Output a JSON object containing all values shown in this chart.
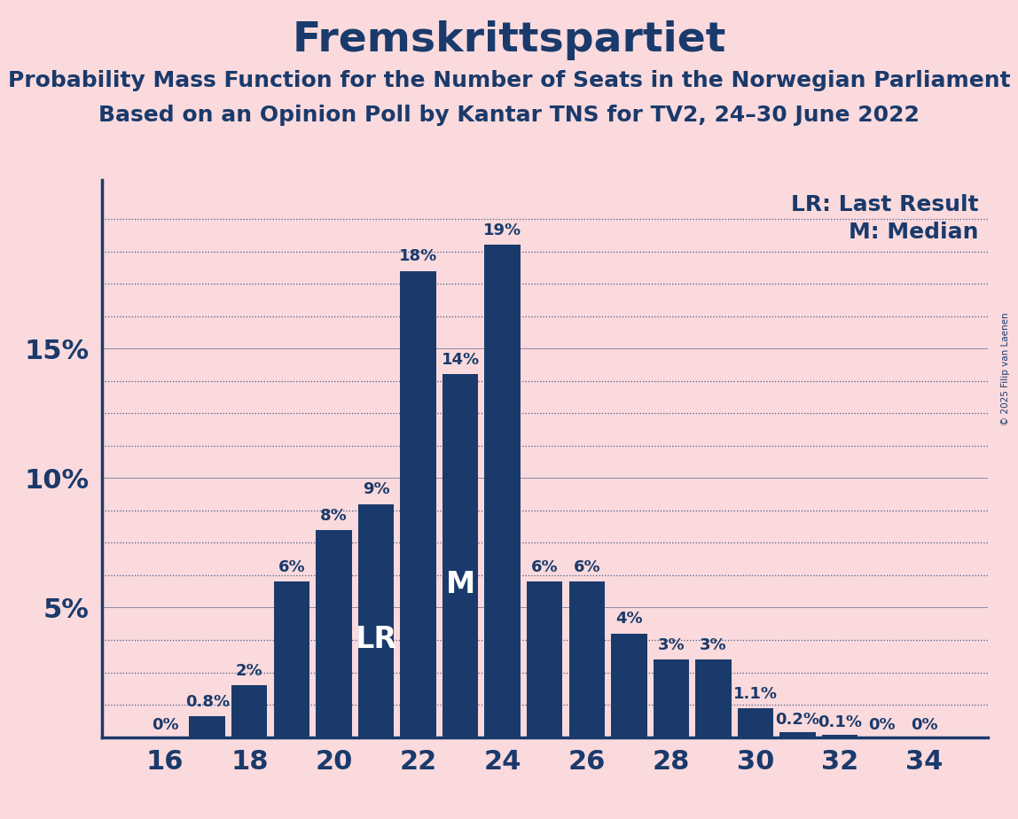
{
  "title": "Fremskrittspartiet",
  "subtitle1": "Probability Mass Function for the Number of Seats in the Norwegian Parliament",
  "subtitle2": "Based on an Opinion Poll by Kantar TNS for TV2, 24–30 June 2022",
  "copyright": "© 2025 Filip van Laenen",
  "background_color": "#fadadd",
  "bar_color": "#1a3a6b",
  "title_color": "#1a3a6b",
  "seats": [
    16,
    17,
    18,
    19,
    20,
    21,
    22,
    23,
    24,
    25,
    26,
    27,
    28,
    29,
    30,
    31,
    32,
    33,
    34
  ],
  "probabilities": [
    0.0,
    0.008,
    0.02,
    0.06,
    0.08,
    0.09,
    0.18,
    0.14,
    0.19,
    0.06,
    0.06,
    0.04,
    0.03,
    0.03,
    0.011,
    0.002,
    0.001,
    0.0,
    0.0
  ],
  "labels": [
    "0%",
    "0.8%",
    "2%",
    "6%",
    "8%",
    "9%",
    "18%",
    "14%",
    "19%",
    "6%",
    "6%",
    "4%",
    "3%",
    "3%",
    "1.1%",
    "0.2%",
    "0.1%",
    "0%",
    "0%"
  ],
  "LR_seat": 21,
  "M_seat": 23,
  "yticks_major": [
    0.05,
    0.1,
    0.15
  ],
  "ytick_labels": [
    "5%",
    "10%",
    "15%"
  ],
  "xtick_seats": [
    16,
    18,
    20,
    22,
    24,
    26,
    28,
    30,
    32,
    34
  ],
  "legend_lr": "LR: Last Result",
  "legend_m": "M: Median",
  "grid_color": "#1a3a6b",
  "axis_color": "#1a3a6b",
  "label_fontsize": 13,
  "title_fontsize": 34,
  "subtitle_fontsize": 18,
  "tick_fontsize": 22,
  "legend_fontsize": 18
}
